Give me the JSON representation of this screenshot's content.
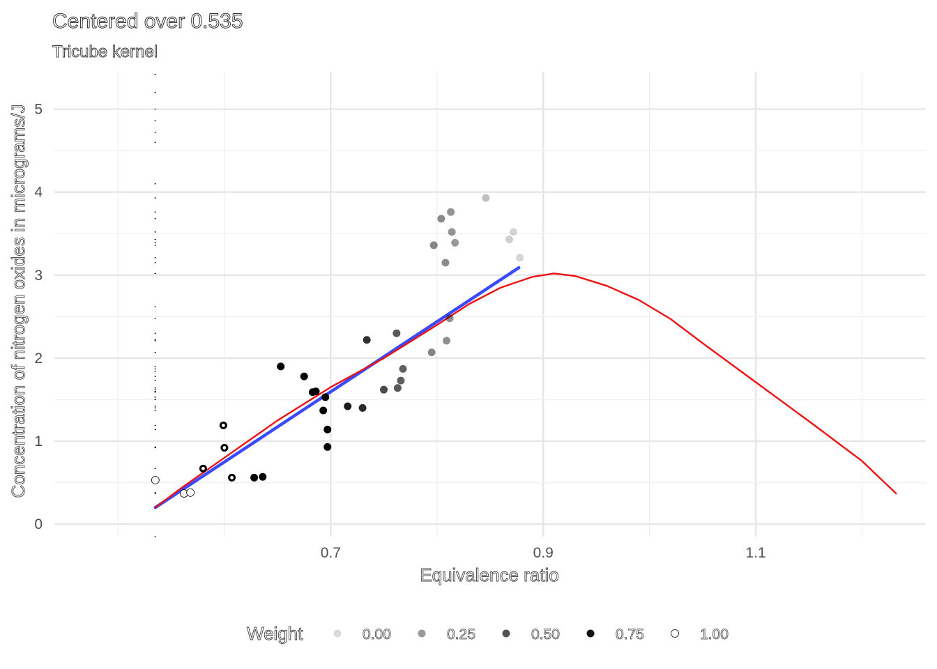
{
  "chart_data": {
    "type": "scatter",
    "title": "Centered over 0.535",
    "subtitle": "Tricube kernel",
    "xlabel": "Equivalence ratio",
    "ylabel": "Concentration of nitrogen oxides in micrograms/J",
    "xlim": [
      0.44,
      1.26
    ],
    "ylim": [
      -0.15,
      5.45
    ],
    "x_ticks": [
      0.7,
      0.9,
      1.1
    ],
    "x_tick_labels": [
      "0.7",
      "0.9",
      "1.1"
    ],
    "y_ticks": [
      0,
      1,
      2,
      3,
      4,
      5
    ],
    "y_tick_labels": [
      "0",
      "1",
      "2",
      "3",
      "4",
      "5"
    ],
    "grid": true,
    "legend": {
      "title": "Weight",
      "position": "bottom",
      "labels": [
        "0.00",
        "0.25",
        "0.50",
        "0.75",
        "1.00"
      ]
    },
    "points": [
      {
        "x": 0.535,
        "y": 0.53,
        "w": 1.0
      },
      {
        "x": 0.562,
        "y": 0.37,
        "w": 1.0
      },
      {
        "x": 0.568,
        "y": 0.38,
        "w": 1.0
      },
      {
        "x": 0.58,
        "y": 0.67,
        "w": 0.9
      },
      {
        "x": 0.599,
        "y": 1.19,
        "w": 0.85
      },
      {
        "x": 0.6,
        "y": 0.92,
        "w": 0.85
      },
      {
        "x": 0.607,
        "y": 0.56,
        "w": 0.85
      },
      {
        "x": 0.628,
        "y": 0.56,
        "w": 0.8
      },
      {
        "x": 0.636,
        "y": 0.57,
        "w": 0.8
      },
      {
        "x": 0.653,
        "y": 1.9,
        "w": 0.8
      },
      {
        "x": 0.675,
        "y": 1.78,
        "w": 0.78
      },
      {
        "x": 0.683,
        "y": 1.59,
        "w": 0.76
      },
      {
        "x": 0.686,
        "y": 1.6,
        "w": 0.76
      },
      {
        "x": 0.693,
        "y": 1.37,
        "w": 0.74
      },
      {
        "x": 0.695,
        "y": 1.53,
        "w": 0.74
      },
      {
        "x": 0.697,
        "y": 1.14,
        "w": 0.74
      },
      {
        "x": 0.697,
        "y": 0.93,
        "w": 0.74
      },
      {
        "x": 0.716,
        "y": 1.42,
        "w": 0.65
      },
      {
        "x": 0.73,
        "y": 1.4,
        "w": 0.6
      },
      {
        "x": 0.734,
        "y": 2.22,
        "w": 0.58
      },
      {
        "x": 0.75,
        "y": 1.62,
        "w": 0.5
      },
      {
        "x": 0.762,
        "y": 2.3,
        "w": 0.45
      },
      {
        "x": 0.763,
        "y": 1.64,
        "w": 0.45
      },
      {
        "x": 0.766,
        "y": 1.73,
        "w": 0.43
      },
      {
        "x": 0.768,
        "y": 1.87,
        "w": 0.42
      },
      {
        "x": 0.795,
        "y": 2.07,
        "w": 0.3
      },
      {
        "x": 0.797,
        "y": 3.36,
        "w": 0.3
      },
      {
        "x": 0.804,
        "y": 3.68,
        "w": 0.28
      },
      {
        "x": 0.808,
        "y": 3.15,
        "w": 0.27
      },
      {
        "x": 0.809,
        "y": 2.21,
        "w": 0.26
      },
      {
        "x": 0.812,
        "y": 2.48,
        "w": 0.25
      },
      {
        "x": 0.813,
        "y": 3.76,
        "w": 0.24
      },
      {
        "x": 0.814,
        "y": 3.52,
        "w": 0.24
      },
      {
        "x": 0.817,
        "y": 3.39,
        "w": 0.23
      },
      {
        "x": 0.846,
        "y": 3.93,
        "w": 0.1
      },
      {
        "x": 0.868,
        "y": 3.43,
        "w": 0.04
      },
      {
        "x": 0.872,
        "y": 3.52,
        "w": 0.03
      },
      {
        "x": 0.878,
        "y": 3.21,
        "w": 0.02
      }
    ],
    "rug_y": [
      0.53,
      0.37,
      0.38,
      0.67,
      1.19,
      0.92,
      0.56,
      0.57,
      1.9,
      1.78,
      1.59,
      1.6,
      1.37,
      1.53,
      1.14,
      0.93,
      1.42,
      1.4,
      2.22,
      1.62,
      2.3,
      1.64,
      1.73,
      1.87,
      2.07,
      3.36,
      3.68,
      3.15,
      2.21,
      2.48,
      3.76,
      3.52,
      3.39,
      3.93,
      3.43,
      3.21,
      4.6,
      4.72,
      4.86,
      5.0,
      5.2,
      5.42,
      4.1,
      3.02,
      2.62,
      1.84,
      1.5,
      0.2,
      -0.25
    ],
    "series": [
      {
        "color": "#3a4bff",
        "x": [
          0.535,
          0.877
        ],
        "y": [
          0.2,
          3.09
        ]
      },
      {
        "color": "#ee1111",
        "x": [
          0.535,
          0.56,
          0.6,
          0.65,
          0.7,
          0.75,
          0.8,
          0.83,
          0.86,
          0.89,
          0.91,
          0.93,
          0.96,
          0.99,
          1.02,
          1.05,
          1.1,
          1.15,
          1.2,
          1.232
        ],
        "y": [
          0.2,
          0.44,
          0.8,
          1.25,
          1.65,
          2.0,
          2.4,
          2.65,
          2.85,
          2.98,
          3.02,
          2.99,
          2.87,
          2.7,
          2.47,
          2.18,
          1.71,
          1.24,
          0.76,
          0.37
        ]
      }
    ]
  }
}
